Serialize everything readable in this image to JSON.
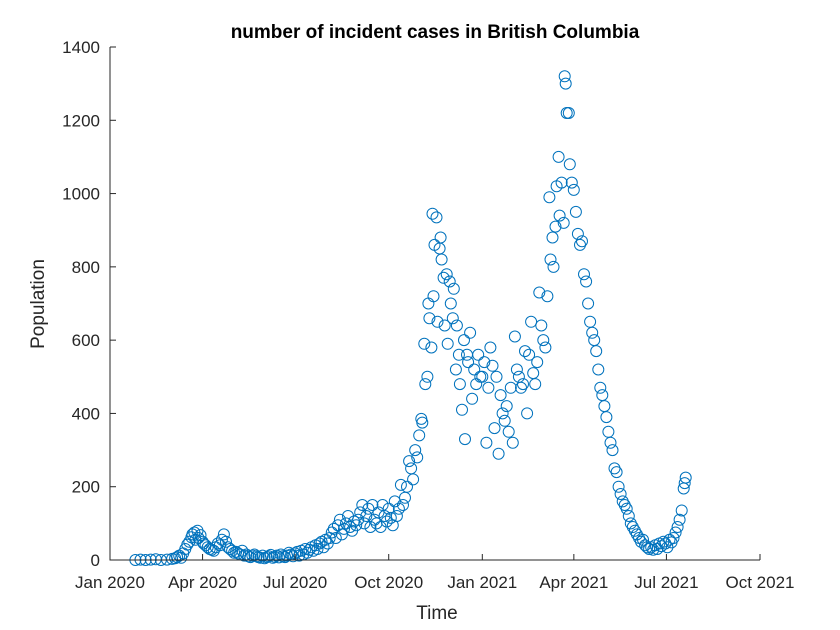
{
  "chart_data": {
    "type": "scatter",
    "title": "number of incident cases in British Columbia",
    "xlabel": "Time",
    "ylabel": "Population",
    "xlim": [
      "2020-01-01",
      "2021-10-01"
    ],
    "ylim": [
      0,
      1400
    ],
    "x_ticks": [
      {
        "date": "2020-01-01",
        "label": "Jan 2020"
      },
      {
        "date": "2020-04-01",
        "label": "Apr 2020"
      },
      {
        "date": "2020-07-01",
        "label": "Jul 2020"
      },
      {
        "date": "2020-10-01",
        "label": "Oct 2020"
      },
      {
        "date": "2021-01-01",
        "label": "Jan 2021"
      },
      {
        "date": "2021-04-01",
        "label": "Apr 2021"
      },
      {
        "date": "2021-07-01",
        "label": "Jul 2021"
      },
      {
        "date": "2021-10-01",
        "label": "Oct 2021"
      }
    ],
    "y_ticks": [
      0,
      200,
      400,
      600,
      800,
      1000,
      1200,
      1400
    ],
    "grid": false,
    "marker": "open-circle",
    "color": "#0072BD",
    "series": [
      {
        "points": [
          [
            "2020-01-26",
            0
          ],
          [
            "2020-01-31",
            1
          ],
          [
            "2020-02-05",
            0
          ],
          [
            "2020-02-10",
            1
          ],
          [
            "2020-02-15",
            2
          ],
          [
            "2020-02-20",
            0
          ],
          [
            "2020-02-26",
            1
          ],
          [
            "2020-03-02",
            3
          ],
          [
            "2020-03-05",
            5
          ],
          [
            "2020-03-07",
            8
          ],
          [
            "2020-03-09",
            12
          ],
          [
            "2020-03-11",
            6
          ],
          [
            "2020-03-13",
            18
          ],
          [
            "2020-03-15",
            30
          ],
          [
            "2020-03-17",
            42
          ],
          [
            "2020-03-19",
            50
          ],
          [
            "2020-03-21",
            62
          ],
          [
            "2020-03-22",
            70
          ],
          [
            "2020-03-24",
            75
          ],
          [
            "2020-03-25",
            55
          ],
          [
            "2020-03-27",
            80
          ],
          [
            "2020-03-28",
            60
          ],
          [
            "2020-03-30",
            68
          ],
          [
            "2020-04-01",
            50
          ],
          [
            "2020-04-02",
            45
          ],
          [
            "2020-04-04",
            40
          ],
          [
            "2020-04-06",
            35
          ],
          [
            "2020-04-08",
            30
          ],
          [
            "2020-04-10",
            28
          ],
          [
            "2020-04-12",
            25
          ],
          [
            "2020-04-14",
            35
          ],
          [
            "2020-04-16",
            45
          ],
          [
            "2020-04-18",
            40
          ],
          [
            "2020-04-20",
            55
          ],
          [
            "2020-04-22",
            70
          ],
          [
            "2020-04-24",
            50
          ],
          [
            "2020-04-26",
            35
          ],
          [
            "2020-04-28",
            30
          ],
          [
            "2020-04-30",
            25
          ],
          [
            "2020-05-02",
            20
          ],
          [
            "2020-05-04",
            22
          ],
          [
            "2020-05-06",
            18
          ],
          [
            "2020-05-08",
            15
          ],
          [
            "2020-05-10",
            25
          ],
          [
            "2020-05-12",
            12
          ],
          [
            "2020-05-14",
            15
          ],
          [
            "2020-05-16",
            10
          ],
          [
            "2020-05-18",
            8
          ],
          [
            "2020-05-20",
            12
          ],
          [
            "2020-05-22",
            15
          ],
          [
            "2020-05-24",
            10
          ],
          [
            "2020-05-26",
            8
          ],
          [
            "2020-05-28",
            6
          ],
          [
            "2020-05-30",
            12
          ],
          [
            "2020-06-01",
            5
          ],
          [
            "2020-06-03",
            8
          ],
          [
            "2020-06-05",
            10
          ],
          [
            "2020-06-07",
            14
          ],
          [
            "2020-06-09",
            6
          ],
          [
            "2020-06-11",
            9
          ],
          [
            "2020-06-13",
            12
          ],
          [
            "2020-06-15",
            7
          ],
          [
            "2020-06-17",
            15
          ],
          [
            "2020-06-19",
            10
          ],
          [
            "2020-06-21",
            8
          ],
          [
            "2020-06-23",
            12
          ],
          [
            "2020-06-25",
            20
          ],
          [
            "2020-06-27",
            15
          ],
          [
            "2020-06-29",
            10
          ],
          [
            "2020-07-01",
            18
          ],
          [
            "2020-07-03",
            22
          ],
          [
            "2020-07-05",
            12
          ],
          [
            "2020-07-07",
            25
          ],
          [
            "2020-07-09",
            15
          ],
          [
            "2020-07-11",
            30
          ],
          [
            "2020-07-13",
            20
          ],
          [
            "2020-07-15",
            28
          ],
          [
            "2020-07-17",
            35
          ],
          [
            "2020-07-19",
            25
          ],
          [
            "2020-07-21",
            40
          ],
          [
            "2020-07-23",
            30
          ],
          [
            "2020-07-25",
            45
          ],
          [
            "2020-07-27",
            50
          ],
          [
            "2020-07-29",
            35
          ],
          [
            "2020-07-31",
            55
          ],
          [
            "2020-08-02",
            45
          ],
          [
            "2020-08-04",
            60
          ],
          [
            "2020-08-06",
            75
          ],
          [
            "2020-08-08",
            85
          ],
          [
            "2020-08-10",
            60
          ],
          [
            "2020-08-12",
            95
          ],
          [
            "2020-08-14",
            110
          ],
          [
            "2020-08-16",
            70
          ],
          [
            "2020-08-18",
            85
          ],
          [
            "2020-08-20",
            100
          ],
          [
            "2020-08-22",
            120
          ],
          [
            "2020-08-24",
            90
          ],
          [
            "2020-08-26",
            80
          ],
          [
            "2020-08-28",
            105
          ],
          [
            "2020-08-30",
            95
          ],
          [
            "2020-09-01",
            110
          ],
          [
            "2020-09-03",
            130
          ],
          [
            "2020-09-05",
            150
          ],
          [
            "2020-09-07",
            100
          ],
          [
            "2020-09-09",
            120
          ],
          [
            "2020-09-11",
            140
          ],
          [
            "2020-09-13",
            90
          ],
          [
            "2020-09-15",
            150
          ],
          [
            "2020-09-17",
            110
          ],
          [
            "2020-09-19",
            100
          ],
          [
            "2020-09-21",
            130
          ],
          [
            "2020-09-23",
            90
          ],
          [
            "2020-09-25",
            150
          ],
          [
            "2020-09-27",
            120
          ],
          [
            "2020-09-29",
            105
          ],
          [
            "2020-10-01",
            140
          ],
          [
            "2020-10-03",
            115
          ],
          [
            "2020-10-05",
            95
          ],
          [
            "2020-10-07",
            160
          ],
          [
            "2020-10-09",
            120
          ],
          [
            "2020-10-11",
            140
          ],
          [
            "2020-10-13",
            205
          ],
          [
            "2020-10-15",
            150
          ],
          [
            "2020-10-17",
            170
          ],
          [
            "2020-10-19",
            200
          ],
          [
            "2020-10-21",
            270
          ],
          [
            "2020-10-23",
            250
          ],
          [
            "2020-10-25",
            220
          ],
          [
            "2020-10-27",
            300
          ],
          [
            "2020-10-29",
            280
          ],
          [
            "2020-10-31",
            340
          ],
          [
            "2020-11-02",
            385
          ],
          [
            "2020-11-03",
            375
          ],
          [
            "2020-11-05",
            590
          ],
          [
            "2020-11-06",
            480
          ],
          [
            "2020-11-08",
            500
          ],
          [
            "2020-11-09",
            700
          ],
          [
            "2020-11-10",
            660
          ],
          [
            "2020-11-12",
            580
          ],
          [
            "2020-11-13",
            945
          ],
          [
            "2020-11-14",
            720
          ],
          [
            "2020-11-15",
            860
          ],
          [
            "2020-11-17",
            935
          ],
          [
            "2020-11-18",
            650
          ],
          [
            "2020-11-20",
            850
          ],
          [
            "2020-11-21",
            880
          ],
          [
            "2020-11-22",
            820
          ],
          [
            "2020-11-24",
            770
          ],
          [
            "2020-11-25",
            640
          ],
          [
            "2020-11-27",
            780
          ],
          [
            "2020-11-28",
            590
          ],
          [
            "2020-11-30",
            760
          ],
          [
            "2020-12-01",
            700
          ],
          [
            "2020-12-03",
            660
          ],
          [
            "2020-12-04",
            740
          ],
          [
            "2020-12-06",
            520
          ],
          [
            "2020-12-07",
            640
          ],
          [
            "2020-12-09",
            560
          ],
          [
            "2020-12-10",
            480
          ],
          [
            "2020-12-12",
            410
          ],
          [
            "2020-12-14",
            600
          ],
          [
            "2020-12-15",
            330
          ],
          [
            "2020-12-17",
            560
          ],
          [
            "2020-12-18",
            540
          ],
          [
            "2020-12-20",
            620
          ],
          [
            "2020-12-22",
            440
          ],
          [
            "2020-12-24",
            520
          ],
          [
            "2020-12-26",
            480
          ],
          [
            "2020-12-28",
            560
          ],
          [
            "2020-12-30",
            500
          ],
          [
            "2021-01-01",
            500
          ],
          [
            "2021-01-03",
            540
          ],
          [
            "2021-01-05",
            320
          ],
          [
            "2021-01-07",
            470
          ],
          [
            "2021-01-09",
            580
          ],
          [
            "2021-01-11",
            530
          ],
          [
            "2021-01-13",
            360
          ],
          [
            "2021-01-15",
            500
          ],
          [
            "2021-01-17",
            290
          ],
          [
            "2021-01-19",
            450
          ],
          [
            "2021-01-21",
            400
          ],
          [
            "2021-01-23",
            380
          ],
          [
            "2021-01-25",
            420
          ],
          [
            "2021-01-27",
            350
          ],
          [
            "2021-01-29",
            470
          ],
          [
            "2021-01-31",
            320
          ],
          [
            "2021-02-02",
            610
          ],
          [
            "2021-02-04",
            520
          ],
          [
            "2021-02-06",
            500
          ],
          [
            "2021-02-08",
            470
          ],
          [
            "2021-02-10",
            480
          ],
          [
            "2021-02-12",
            570
          ],
          [
            "2021-02-14",
            400
          ],
          [
            "2021-02-16",
            560
          ],
          [
            "2021-02-18",
            650
          ],
          [
            "2021-02-20",
            510
          ],
          [
            "2021-02-22",
            480
          ],
          [
            "2021-02-24",
            540
          ],
          [
            "2021-02-26",
            730
          ],
          [
            "2021-02-28",
            640
          ],
          [
            "2021-03-02",
            600
          ],
          [
            "2021-03-04",
            580
          ],
          [
            "2021-03-06",
            720
          ],
          [
            "2021-03-08",
            990
          ],
          [
            "2021-03-09",
            820
          ],
          [
            "2021-03-11",
            880
          ],
          [
            "2021-03-12",
            800
          ],
          [
            "2021-03-14",
            910
          ],
          [
            "2021-03-15",
            1020
          ],
          [
            "2021-03-17",
            1100
          ],
          [
            "2021-03-18",
            940
          ],
          [
            "2021-03-20",
            1030
          ],
          [
            "2021-03-22",
            920
          ],
          [
            "2021-03-23",
            1320
          ],
          [
            "2021-03-24",
            1300
          ],
          [
            "2021-03-25",
            1220
          ],
          [
            "2021-03-27",
            1220
          ],
          [
            "2021-03-28",
            1080
          ],
          [
            "2021-03-30",
            1030
          ],
          [
            "2021-04-01",
            1010
          ],
          [
            "2021-04-03",
            950
          ],
          [
            "2021-04-05",
            890
          ],
          [
            "2021-04-07",
            860
          ],
          [
            "2021-04-09",
            870
          ],
          [
            "2021-04-11",
            780
          ],
          [
            "2021-04-13",
            760
          ],
          [
            "2021-04-15",
            700
          ],
          [
            "2021-04-17",
            650
          ],
          [
            "2021-04-19",
            620
          ],
          [
            "2021-04-21",
            600
          ],
          [
            "2021-04-23",
            570
          ],
          [
            "2021-04-25",
            520
          ],
          [
            "2021-04-27",
            470
          ],
          [
            "2021-04-29",
            450
          ],
          [
            "2021-05-01",
            420
          ],
          [
            "2021-05-03",
            390
          ],
          [
            "2021-05-05",
            350
          ],
          [
            "2021-05-07",
            320
          ],
          [
            "2021-05-09",
            300
          ],
          [
            "2021-05-11",
            250
          ],
          [
            "2021-05-13",
            240
          ],
          [
            "2021-05-15",
            200
          ],
          [
            "2021-05-17",
            180
          ],
          [
            "2021-05-19",
            160
          ],
          [
            "2021-05-21",
            150
          ],
          [
            "2021-05-23",
            140
          ],
          [
            "2021-05-25",
            120
          ],
          [
            "2021-05-27",
            100
          ],
          [
            "2021-05-29",
            90
          ],
          [
            "2021-05-31",
            80
          ],
          [
            "2021-06-02",
            70
          ],
          [
            "2021-06-04",
            60
          ],
          [
            "2021-06-06",
            50
          ],
          [
            "2021-06-08",
            55
          ],
          [
            "2021-06-10",
            40
          ],
          [
            "2021-06-12",
            35
          ],
          [
            "2021-06-14",
            30
          ],
          [
            "2021-06-16",
            35
          ],
          [
            "2021-06-18",
            28
          ],
          [
            "2021-06-20",
            40
          ],
          [
            "2021-06-22",
            30
          ],
          [
            "2021-06-24",
            45
          ],
          [
            "2021-06-26",
            38
          ],
          [
            "2021-06-28",
            50
          ],
          [
            "2021-06-30",
            45
          ],
          [
            "2021-07-02",
            35
          ],
          [
            "2021-07-04",
            55
          ],
          [
            "2021-07-06",
            48
          ],
          [
            "2021-07-08",
            60
          ],
          [
            "2021-07-10",
            75
          ],
          [
            "2021-07-12",
            90
          ],
          [
            "2021-07-14",
            110
          ],
          [
            "2021-07-16",
            135
          ],
          [
            "2021-07-18",
            195
          ],
          [
            "2021-07-19",
            210
          ],
          [
            "2021-07-20",
            225
          ]
        ]
      }
    ]
  }
}
